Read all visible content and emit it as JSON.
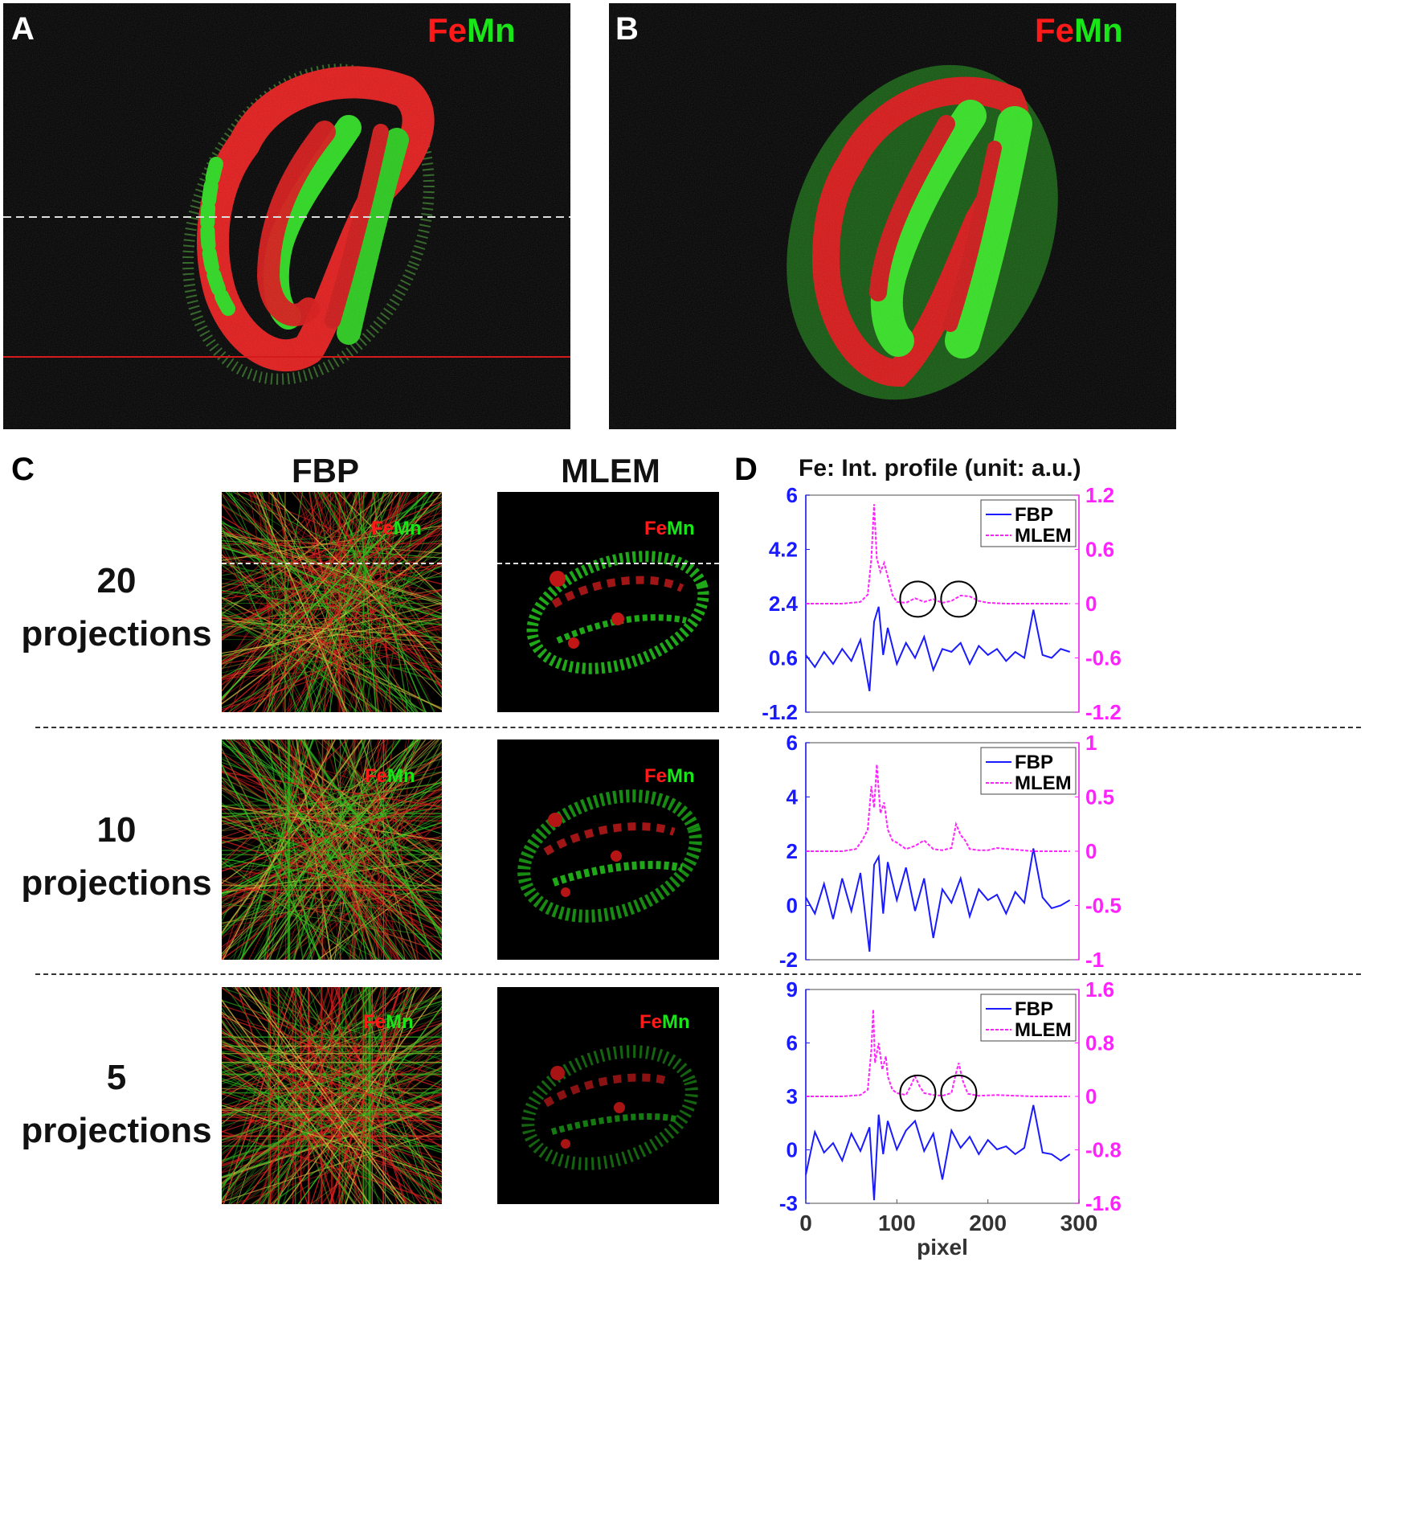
{
  "panels": {
    "A": {
      "letter": "A",
      "fe": "Fe",
      "mn": "Mn"
    },
    "B": {
      "letter": "B",
      "fe": "Fe",
      "mn": "Mn"
    },
    "C": {
      "letter": "C",
      "fbp_header": "FBP",
      "mlem_header": "MLEM",
      "rows": [
        {
          "num": "20",
          "word": "projections"
        },
        {
          "num": "10",
          "word": "projections"
        },
        {
          "num": "5",
          "word": "projections"
        }
      ],
      "fe": "Fe",
      "mn": "Mn"
    },
    "D": {
      "letter": "D",
      "title": "Fe: Int. profile (unit: a.u.)"
    }
  },
  "colors": {
    "fe": "#ff1a1a",
    "mn": "#19e619",
    "fbp_line": "#1a1aff",
    "mlem_line": "#ff22ff"
  },
  "chart_data": [
    {
      "type": "line",
      "xlabel": "",
      "xlim": [
        0,
        300
      ],
      "y_left": {
        "lim": [
          -1.2,
          6
        ],
        "ticks": [
          "6",
          "4.2",
          "2.4",
          "0.6",
          "-1.2"
        ]
      },
      "y_right": {
        "lim": [
          -1.2,
          1.2
        ],
        "ticks": [
          "1.2",
          "0.6",
          "0",
          "-0.6",
          "-1.2"
        ]
      },
      "legend": [
        "FBP",
        "MLEM"
      ],
      "legend_position": "top-right",
      "circles_at_x": [
        123,
        168
      ],
      "series": [
        {
          "name": "FBP",
          "axis": "left",
          "style": "solid",
          "x": [
            0,
            10,
            20,
            30,
            40,
            50,
            60,
            70,
            75,
            80,
            85,
            90,
            100,
            110,
            120,
            130,
            140,
            150,
            160,
            170,
            180,
            190,
            200,
            210,
            220,
            230,
            240,
            250,
            260,
            270,
            280,
            290
          ],
          "values": [
            0.7,
            0.3,
            0.8,
            0.4,
            0.9,
            0.5,
            1.2,
            -0.5,
            1.8,
            2.3,
            0.7,
            1.6,
            0.4,
            1.1,
            0.6,
            1.3,
            0.2,
            0.9,
            0.8,
            1.1,
            0.4,
            1.0,
            0.7,
            0.9,
            0.5,
            0.8,
            0.6,
            2.2,
            0.7,
            0.6,
            0.9,
            0.8
          ]
        },
        {
          "name": "MLEM",
          "axis": "right",
          "style": "dashed",
          "x": [
            0,
            20,
            40,
            60,
            68,
            72,
            75,
            78,
            82,
            86,
            90,
            95,
            100,
            110,
            120,
            130,
            140,
            150,
            160,
            170,
            180,
            190,
            200,
            220,
            250,
            290
          ],
          "values": [
            0,
            0,
            0,
            0.02,
            0.1,
            0.5,
            1.1,
            0.5,
            0.35,
            0.45,
            0.3,
            0.1,
            0.02,
            0.01,
            0.06,
            0.02,
            0.05,
            0.01,
            0.03,
            0.09,
            0.08,
            0.03,
            0.01,
            0,
            0,
            0
          ]
        }
      ]
    },
    {
      "type": "line",
      "xlabel": "",
      "xlim": [
        0,
        300
      ],
      "y_left": {
        "lim": [
          -2,
          6
        ],
        "ticks": [
          "6",
          "4",
          "2",
          "0",
          "-2"
        ]
      },
      "y_right": {
        "lim": [
          -1,
          1
        ],
        "ticks": [
          "1",
          "0.5",
          "0",
          "-0.5",
          "-1"
        ]
      },
      "legend": [
        "FBP",
        "MLEM"
      ],
      "legend_position": "top-right",
      "series": [
        {
          "name": "FBP",
          "axis": "left",
          "style": "solid",
          "x": [
            0,
            10,
            20,
            30,
            40,
            50,
            60,
            70,
            75,
            80,
            85,
            90,
            100,
            110,
            120,
            130,
            140,
            150,
            160,
            170,
            180,
            190,
            200,
            210,
            220,
            230,
            240,
            250,
            260,
            270,
            280,
            290
          ],
          "values": [
            0.3,
            -0.3,
            0.8,
            -0.5,
            1.0,
            -0.2,
            1.2,
            -1.7,
            1.5,
            1.8,
            -0.3,
            1.6,
            0.2,
            1.4,
            -0.2,
            1.0,
            -1.2,
            0.6,
            0.1,
            1.0,
            -0.4,
            0.6,
            0.2,
            0.4,
            -0.3,
            0.5,
            0.1,
            2.1,
            0.3,
            -0.1,
            0.0,
            0.2
          ]
        },
        {
          "name": "MLEM",
          "axis": "right",
          "style": "dashed",
          "x": [
            0,
            20,
            40,
            55,
            62,
            68,
            72,
            75,
            78,
            82,
            86,
            90,
            95,
            100,
            110,
            120,
            130,
            140,
            150,
            160,
            165,
            170,
            175,
            180,
            190,
            200,
            210,
            250,
            290
          ],
          "values": [
            0,
            0,
            0,
            0.02,
            0.1,
            0.2,
            0.6,
            0.4,
            0.8,
            0.35,
            0.45,
            0.2,
            0.1,
            0.08,
            0.02,
            0.05,
            0.1,
            0.02,
            0.01,
            0.03,
            0.25,
            0.15,
            0.1,
            0.02,
            0.01,
            0.01,
            0.03,
            0,
            0
          ]
        }
      ]
    },
    {
      "type": "line",
      "xlabel": "pixel",
      "xlim": [
        0,
        300
      ],
      "x_ticks": [
        "0",
        "100",
        "200",
        "300"
      ],
      "y_left": {
        "lim": [
          -3,
          10.5
        ],
        "ticks": [
          "9",
          "6",
          "3",
          "0",
          "-3"
        ]
      },
      "y_right": {
        "lim": [
          -1.6,
          1.6
        ],
        "ticks": [
          "1.6",
          "0.8",
          "0",
          "-0.8",
          "-1.6"
        ]
      },
      "legend": [
        "FBP",
        "MLEM"
      ],
      "legend_position": "top-right",
      "circles_at_x": [
        123,
        168
      ],
      "series": [
        {
          "name": "FBP",
          "axis": "left",
          "style": "solid",
          "x": [
            0,
            10,
            20,
            30,
            40,
            50,
            60,
            70,
            75,
            80,
            85,
            90,
            100,
            110,
            120,
            130,
            140,
            150,
            160,
            170,
            180,
            190,
            200,
            210,
            220,
            230,
            240,
            250,
            260,
            270,
            280,
            290
          ],
          "values": [
            -1.2,
            1.5,
            0.2,
            0.8,
            -0.3,
            1.4,
            0.3,
            1.8,
            -2.8,
            2.6,
            0.1,
            2.2,
            0.4,
            1.6,
            2.2,
            0.3,
            1.4,
            -1.5,
            1.6,
            0.5,
            1.2,
            0.1,
            1.0,
            0.4,
            0.6,
            0.1,
            0.5,
            3.2,
            0.2,
            0.1,
            -0.3,
            0.1
          ]
        },
        {
          "name": "MLEM",
          "axis": "right",
          "style": "dashed",
          "x": [
            0,
            20,
            40,
            60,
            68,
            72,
            74,
            76,
            80,
            84,
            88,
            90,
            95,
            100,
            110,
            115,
            120,
            125,
            130,
            140,
            150,
            160,
            165,
            168,
            172,
            178,
            190,
            210,
            250,
            290
          ],
          "values": [
            0,
            0,
            0,
            0.02,
            0.1,
            0.7,
            1.3,
            0.5,
            0.8,
            0.4,
            0.6,
            0.3,
            0.1,
            0.05,
            0.02,
            0.15,
            0.3,
            0.15,
            0.05,
            0.02,
            0.01,
            0.05,
            0.35,
            0.5,
            0.25,
            0.04,
            0.01,
            0.02,
            0,
            0
          ]
        }
      ]
    }
  ]
}
